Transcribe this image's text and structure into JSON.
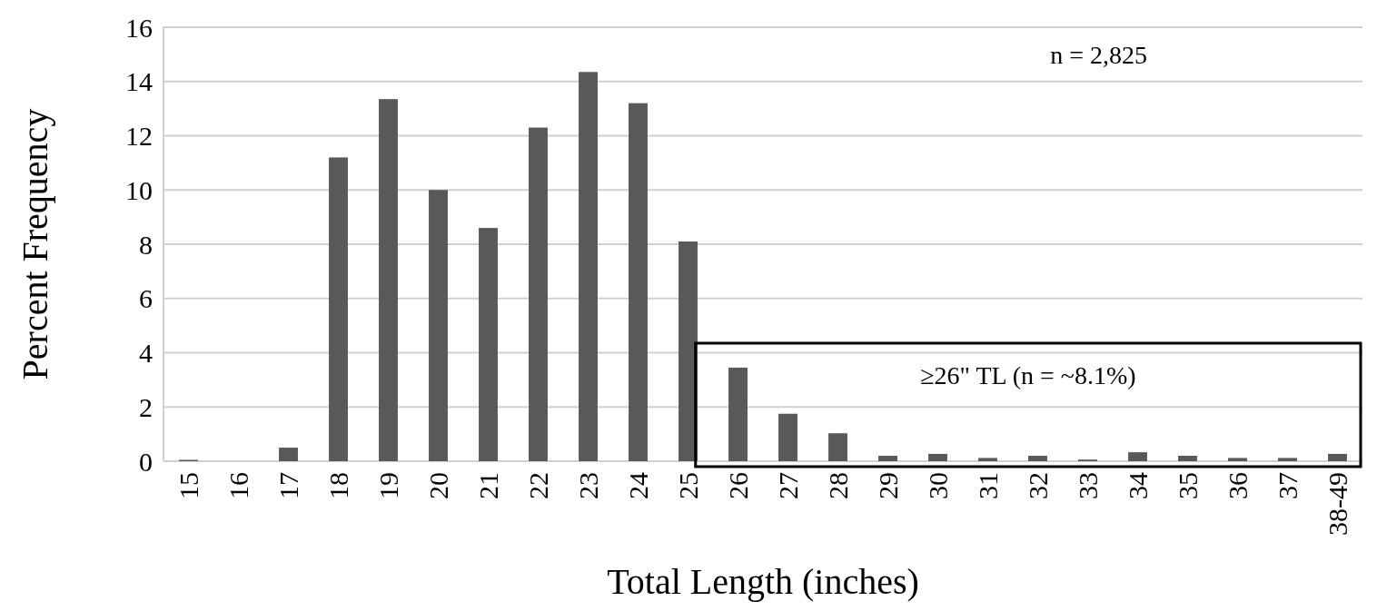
{
  "chart_data": {
    "type": "bar",
    "xlabel": "Total Length (inches)",
    "ylabel": "Percent Frequency",
    "categories": [
      "15",
      "16",
      "17",
      "18",
      "19",
      "20",
      "21",
      "22",
      "23",
      "24",
      "25",
      "26",
      "27",
      "28",
      "29",
      "30",
      "31",
      "32",
      "33",
      "34",
      "35",
      "36",
      "37",
      "38-49"
    ],
    "values": [
      0.05,
      0,
      0.5,
      11.2,
      13.35,
      10.0,
      8.6,
      12.3,
      14.35,
      13.2,
      8.1,
      3.45,
      1.75,
      1.03,
      0.2,
      0.27,
      0.12,
      0.2,
      0.06,
      0.33,
      0.2,
      0.12,
      0.12,
      0.27
    ],
    "color": "#595959",
    "ylim": [
      0,
      16
    ],
    "yticks": [
      0,
      2,
      4,
      6,
      8,
      10,
      12,
      14,
      16
    ],
    "grid": "y",
    "annotations": [
      "n = 2,825",
      "≥26\" TL (n = ~8.1%)"
    ]
  }
}
